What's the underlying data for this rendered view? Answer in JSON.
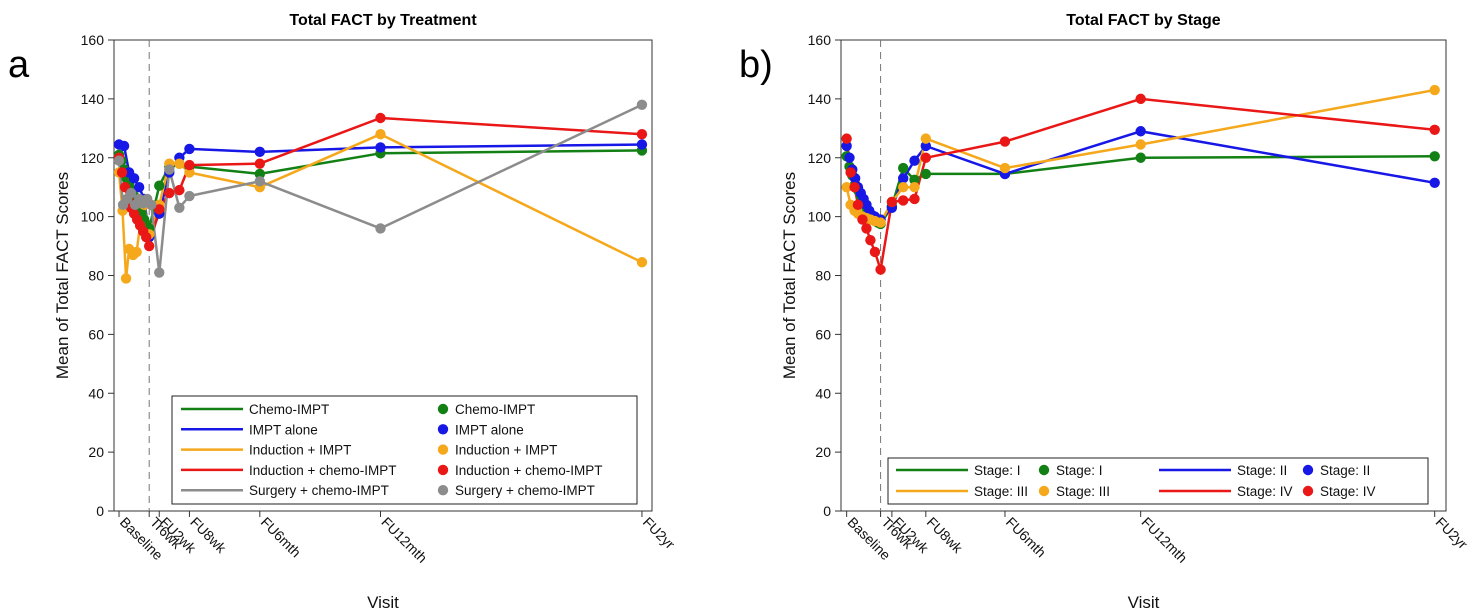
{
  "panels": [
    {
      "letter": "a",
      "chart_data": {
        "type": "line",
        "title": "Total FACT by Treatment",
        "xlabel": "Visit",
        "ylabel": "Mean of Total FACT Scores",
        "ylim": [
          0,
          160
        ],
        "yticks": [
          0,
          20,
          40,
          60,
          80,
          100,
          120,
          140,
          160
        ],
        "xticks": [
          "Baseline",
          "Tr6wk",
          "FU2wk",
          "FU8wk",
          "FU6mth",
          "FU12mth",
          "FU2yr"
        ],
        "xtick_pos": [
          0,
          6,
          8,
          14,
          28,
          52,
          104
        ],
        "xlim": [
          -1,
          106
        ],
        "reference_line_x": 6,
        "grid": false,
        "legend_placement": "bottom-right (inside)",
        "legend_columns": 2,
        "markers": true,
        "series": [
          {
            "name": "Chemo-IMPT",
            "color": "#138015",
            "x": [
              0,
              0.5,
              1,
              1.5,
              2,
              2.5,
              3,
              3.5,
              4,
              4.5,
              5,
              5.5,
              6,
              8,
              10,
              12,
              14,
              28,
              52,
              104
            ],
            "y": [
              121,
              119,
              116,
              113,
              111,
              109,
              107,
              105,
              103,
              101,
              99,
              97,
              96,
              110.5,
              117,
              118,
              117,
              114.5,
              121.5,
              122.5
            ]
          },
          {
            "name": "IMPT alone",
            "color": "#1717E6",
            "x": [
              0,
              1,
              2,
              3,
              4,
              5,
              6,
              8,
              10,
              12,
              14,
              28,
              52,
              104
            ],
            "y": [
              124.5,
              124,
              115,
              113,
              110,
              106,
              93,
              101,
              115,
              120,
              123,
              122,
              123.5,
              124.5
            ]
          },
          {
            "name": "Induction + IMPT",
            "color": "#F5A81C",
            "x": [
              0,
              0.7,
              1.4,
              2,
              2.8,
              3.5,
              4.2,
              5,
              6,
              8,
              10,
              12,
              14,
              28,
              52,
              104
            ],
            "y": [
              115,
              102,
              79,
              89,
              87,
              88,
              97,
              104,
              94,
              104,
              118,
              118,
              115,
              110,
              128,
              84.5
            ]
          },
          {
            "name": "Induction + chemo-IMPT",
            "color": "#EA1717",
            "x": [
              0,
              0.6,
              1.2,
              1.8,
              2.4,
              3,
              3.6,
              4.2,
              4.8,
              5.4,
              6,
              8,
              10,
              12,
              14,
              28,
              52,
              104
            ],
            "y": [
              120,
              115,
              110,
              106,
              103,
              101,
              99,
              97,
              95,
              93,
              90,
              102.5,
              108,
              109,
              117.5,
              118,
              133.5,
              128
            ]
          },
          {
            "name": "Surgery + chemo-IMPT",
            "color": "#8C8C8C",
            "x": [
              0,
              0.8,
              1.6,
              2.4,
              3.2,
              4,
              4.8,
              5.6,
              6.4,
              8,
              10,
              12,
              14,
              28,
              52,
              104
            ],
            "y": [
              119,
              104,
              106,
              108,
              104,
              106,
              104.5,
              106,
              104,
              81,
              116,
              103,
              107,
              112,
              96,
              138
            ]
          }
        ]
      }
    },
    {
      "letter": "b)",
      "chart_data": {
        "type": "line",
        "title": "Total FACT by Stage",
        "xlabel": "Visit",
        "ylabel": "Mean of Total FACT Scores",
        "ylim": [
          0,
          160
        ],
        "yticks": [
          0,
          20,
          40,
          60,
          80,
          100,
          120,
          140,
          160
        ],
        "xticks": [
          "Baseline",
          "Tr6wk",
          "FU2wk",
          "FU8wk",
          "FU6mth",
          "FU12mth",
          "FU2yr"
        ],
        "xtick_pos": [
          0,
          6,
          8,
          14,
          28,
          52,
          104
        ],
        "xlim": [
          -1,
          106
        ],
        "reference_line_x": 6,
        "grid": false,
        "legend_placement": "bottom-right (inside)",
        "legend_columns": 4,
        "markers": true,
        "series": [
          {
            "name": "Stage: I",
            "color": "#138015",
            "x": [
              0,
              0.5,
              1,
              1.5,
              2,
              2.5,
              3,
              3.5,
              4,
              4.5,
              5,
              5.5,
              6,
              8,
              10,
              12,
              14,
              28,
              52,
              104
            ],
            "y": [
              120.5,
              117,
              114,
              111,
              109,
              107,
              105,
              103,
              101,
              99.5,
              98.5,
              98,
              97.5,
              103.5,
              116.5,
              112.5,
              114.5,
              114.5,
              120,
              120.5
            ]
          },
          {
            "name": "Stage: II",
            "color": "#1717E6",
            "x": [
              0,
              0.5,
              1,
              1.5,
              2,
              2.5,
              3,
              3.5,
              4,
              4.5,
              5,
              5.5,
              6,
              8,
              10,
              12,
              14,
              28,
              52,
              104
            ],
            "y": [
              124,
              120,
              116,
              113,
              110,
              108,
              106,
              104,
              102,
              100.5,
              100,
              99,
              99,
              103,
              113,
              119,
              124,
              114.5,
              129,
              111.5
            ]
          },
          {
            "name": "Stage: III",
            "color": "#F5A81C",
            "x": [
              0,
              0.7,
              1.4,
              2,
              2.8,
              3.5,
              4.2,
              5,
              6,
              8,
              10,
              12,
              14,
              28,
              52,
              104
            ],
            "y": [
              110,
              104,
              102,
              101,
              100,
              99.5,
              99,
              98.5,
              98,
              105,
              110,
              110,
              126.5,
              116.5,
              124.5,
              143
            ]
          },
          {
            "name": "Stage: IV",
            "color": "#EA1717",
            "x": [
              0,
              0.7,
              1.4,
              2,
              2.8,
              3.5,
              4.2,
              5,
              6,
              8,
              10,
              12,
              14,
              28,
              52,
              104
            ],
            "y": [
              126.5,
              115,
              110,
              104,
              99,
              96,
              92,
              88,
              82,
              105,
              105.5,
              106,
              120,
              125.5,
              140,
              129.5
            ]
          }
        ]
      }
    }
  ]
}
